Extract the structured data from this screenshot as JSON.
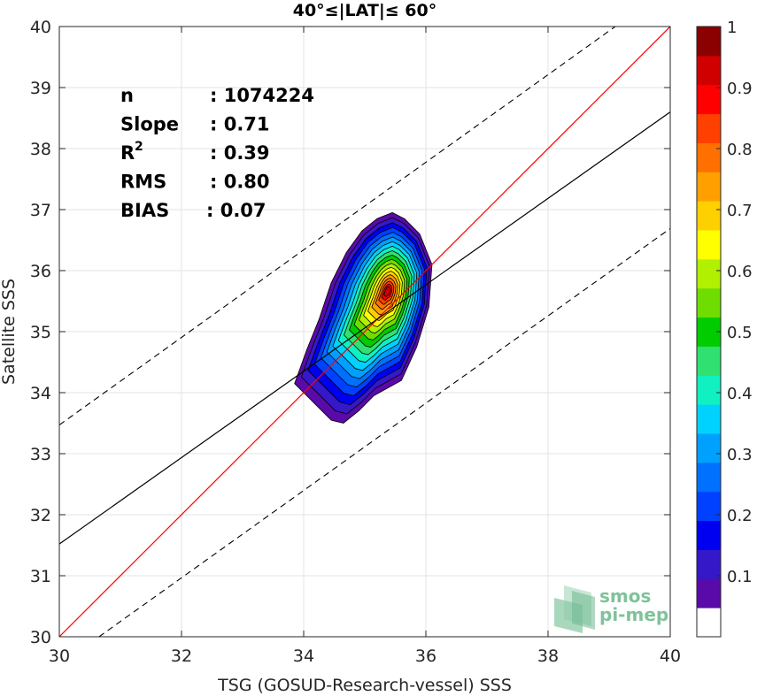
{
  "chart_data": {
    "type": "contour",
    "title": "40°≤|LAT|≤ 60°",
    "xlabel": "TSG (GOSUD-Research-vessel) SSS",
    "ylabel": "Satellite SSS",
    "xlim": [
      30,
      40
    ],
    "ylim": [
      30,
      40
    ],
    "xticks": [
      "30",
      "32",
      "34",
      "36",
      "38",
      "40"
    ],
    "yticks": [
      "30",
      "31",
      "32",
      "33",
      "34",
      "35",
      "36",
      "37",
      "38",
      "39",
      "40"
    ],
    "grid": true,
    "stats": [
      {
        "label": "n",
        "value": ": 1074224"
      },
      {
        "label": "Slope",
        "value": ": 0.71"
      },
      {
        "label": "R",
        "sup": "2",
        "value": ": 0.39"
      },
      {
        "label": "RMS",
        "value": ": 0.80"
      },
      {
        "label": "BIAS",
        "value": ": 0.07"
      }
    ],
    "lines": {
      "one_to_one": {
        "color": "#ff0000",
        "slope": 1,
        "intercept": 0
      },
      "fit": {
        "color": "#000000",
        "slope": 0.71,
        "points": [
          [
            30,
            31.52
          ],
          [
            40,
            38.6
          ]
        ]
      },
      "upper_bound": {
        "style": "dashed",
        "points": [
          [
            30,
            33.47
          ],
          [
            39.1,
            40
          ]
        ]
      },
      "lower_bound": {
        "style": "dashed",
        "points": [
          [
            30.65,
            30
          ],
          [
            40,
            36.69
          ]
        ]
      }
    },
    "density_contours": {
      "levels": [
        0.05,
        0.1,
        0.15,
        0.2,
        0.25,
        0.3,
        0.35,
        0.4,
        0.45,
        0.5,
        0.55,
        0.6,
        0.65,
        0.7,
        0.75,
        0.8,
        0.85,
        0.9,
        0.95
      ],
      "peak": [
        35.5,
        35.75
      ],
      "outer_polygon": [
        [
          33.85,
          34.15
        ],
        [
          34.05,
          34.7
        ],
        [
          34.25,
          35.2
        ],
        [
          34.45,
          35.8
        ],
        [
          34.7,
          36.3
        ],
        [
          34.95,
          36.65
        ],
        [
          35.2,
          36.85
        ],
        [
          35.45,
          36.95
        ],
        [
          35.65,
          36.85
        ],
        [
          35.9,
          36.6
        ],
        [
          36.1,
          36.1
        ],
        [
          36.05,
          35.4
        ],
        [
          35.85,
          34.75
        ],
        [
          35.6,
          34.2
        ],
        [
          35.15,
          33.95
        ],
        [
          34.9,
          33.7
        ],
        [
          34.65,
          33.5
        ],
        [
          34.45,
          33.55
        ],
        [
          34.25,
          33.75
        ],
        [
          34.0,
          34.0
        ]
      ]
    },
    "colorbar": {
      "min": 0,
      "max": 1,
      "ticks": [
        "0.1",
        "0.2",
        "0.3",
        "0.4",
        "0.5",
        "0.6",
        "0.7",
        "0.8",
        "0.9",
        "1"
      ],
      "colors": [
        "#ffffff",
        "#5a0aa8",
        "#3518c8",
        "#0000f0",
        "#0040ff",
        "#0070ff",
        "#00a0ff",
        "#00d2ff",
        "#10f0c0",
        "#30e070",
        "#00cc00",
        "#70dd00",
        "#b0f000",
        "#ffff00",
        "#ffd000",
        "#ffa000",
        "#ff7000",
        "#ff4000",
        "#ff0000",
        "#d00000",
        "#8b0000"
      ]
    }
  },
  "logo": {
    "line1": "smos",
    "line2": "pi-mep"
  }
}
